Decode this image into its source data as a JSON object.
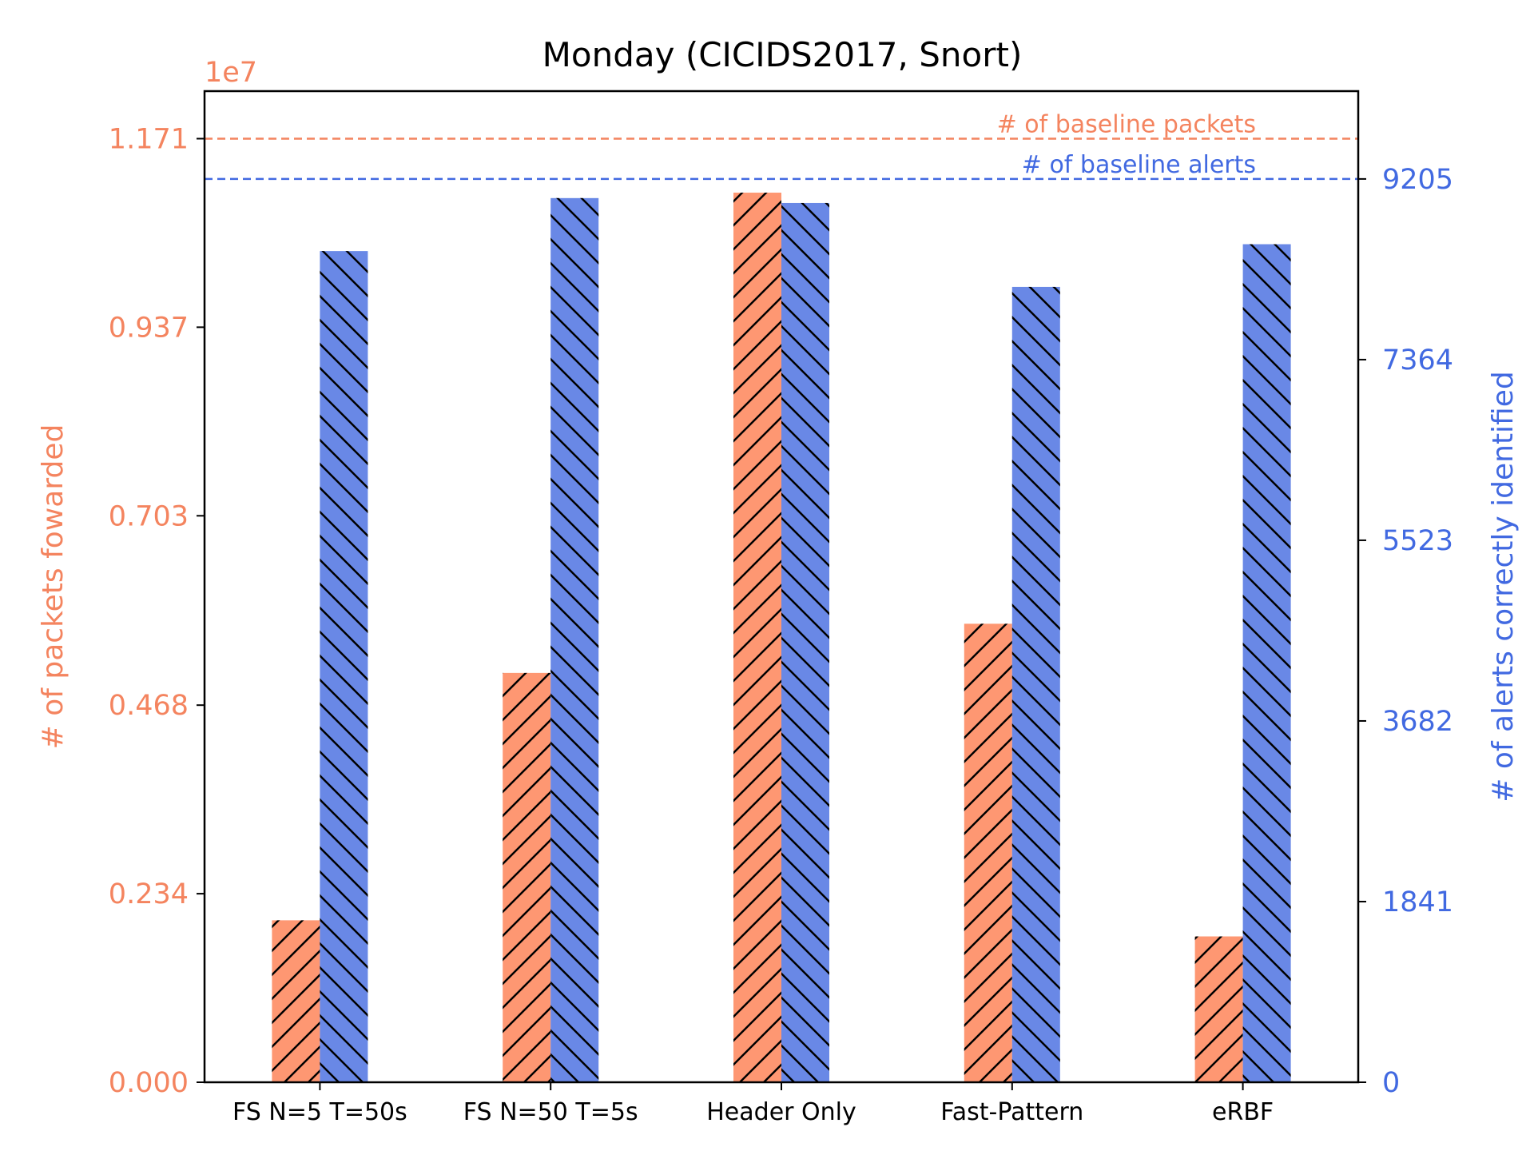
{
  "chart_data": {
    "type": "bar",
    "title": "Monday (CICIDS2017, Snort)",
    "categories": [
      "FS N=5 T=50s",
      "FS N=50 T=5s",
      "Header Only",
      "Fast-Pattern",
      "eRBF"
    ],
    "left_axis": {
      "label": "# of packets fowarded",
      "offset_text": "1e7",
      "scale": 10000000,
      "ylim": [
        0,
        1.23
      ],
      "ticks": [
        "0.000",
        "0.234",
        "0.468",
        "0.703",
        "0.937",
        "1.171"
      ],
      "tick_values": [
        0,
        0.234,
        0.468,
        0.703,
        0.937,
        1.171
      ],
      "color": "#f4845f"
    },
    "right_axis": {
      "label": "# of alerts correctly identified",
      "ylim": [
        0,
        10100
      ],
      "ticks": [
        "0",
        "1841",
        "3682",
        "5523",
        "7364",
        "9205"
      ],
      "tick_values": [
        0,
        1841,
        3682,
        5523,
        7364,
        9205
      ],
      "color": "#4169e1"
    },
    "series": [
      {
        "axis": "left",
        "values": [
          0.201,
          0.508,
          1.104,
          0.569,
          0.181
        ],
        "color": "#fe9772",
        "hatch": "/"
      },
      {
        "axis": "right",
        "values": [
          8470,
          9010,
          8960,
          8105,
          8540
        ],
        "color": "#6988e6",
        "hatch": "\\"
      }
    ],
    "reference_lines": [
      {
        "axis": "left",
        "value": 1.171,
        "label": "# of baseline packets",
        "color": "#f4845f"
      },
      {
        "axis": "right",
        "value": 9205,
        "label": "# of baseline alerts",
        "color": "#4169e1"
      }
    ],
    "grid": false
  }
}
